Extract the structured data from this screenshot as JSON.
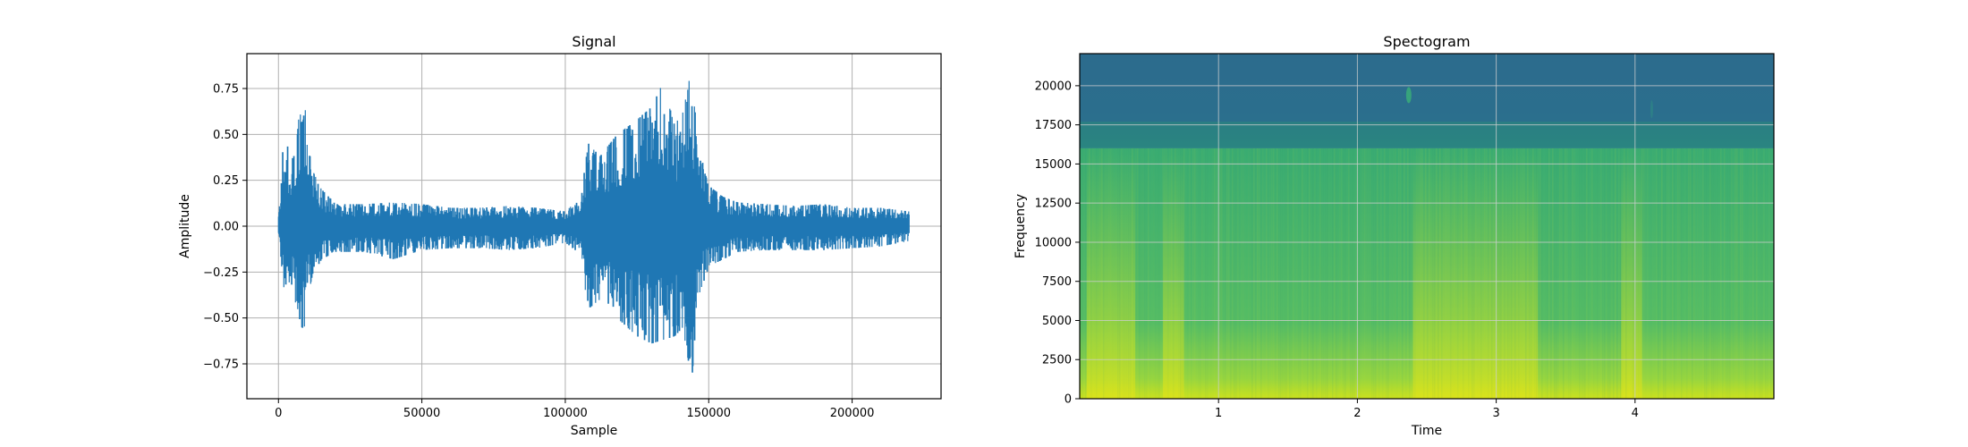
{
  "chart_data": [
    {
      "type": "line",
      "title": "Signal",
      "xlabel": "Sample",
      "ylabel": "Amplitude",
      "xlim": [
        -11000,
        231000
      ],
      "ylim": [
        -0.94,
        0.94
      ],
      "xticks": [
        0,
        50000,
        100000,
        150000,
        200000
      ],
      "xtick_labels": [
        "0",
        "50000",
        "100000",
        "150000",
        "200000"
      ],
      "yticks": [
        -0.75,
        -0.5,
        -0.25,
        0.0,
        0.25,
        0.5,
        0.75
      ],
      "ytick_labels": [
        "−0.75",
        "−0.50",
        "−0.25",
        "0.00",
        "0.25",
        "0.50",
        "0.75"
      ],
      "grid": true,
      "color": "#1f77b4",
      "series": [
        {
          "x": [
            0,
            2000,
            4000,
            6000,
            8000,
            9000,
            10000,
            12000,
            15000,
            20000,
            30000,
            40000,
            50000,
            60000,
            70000,
            80000,
            90000,
            100000,
            105000,
            108000,
            112000,
            118000,
            125000,
            130000,
            134000,
            138000,
            141000,
            144000,
            146000,
            150000,
            155000,
            160000,
            170000,
            180000,
            190000,
            200000,
            210000,
            220000
          ],
          "envelope_max": [
            0.08,
            0.54,
            0.35,
            0.4,
            0.77,
            0.77,
            0.45,
            0.3,
            0.2,
            0.12,
            0.12,
            0.13,
            0.12,
            0.1,
            0.1,
            0.11,
            0.1,
            0.08,
            0.15,
            0.45,
            0.38,
            0.5,
            0.58,
            0.65,
            0.78,
            0.55,
            0.62,
            0.86,
            0.45,
            0.22,
            0.16,
            0.13,
            0.12,
            0.11,
            0.12,
            0.1,
            0.1,
            0.08
          ],
          "envelope_min": [
            -0.08,
            -0.35,
            -0.3,
            -0.42,
            -0.55,
            -0.56,
            -0.4,
            -0.26,
            -0.18,
            -0.14,
            -0.14,
            -0.18,
            -0.13,
            -0.12,
            -0.12,
            -0.13,
            -0.12,
            -0.09,
            -0.15,
            -0.45,
            -0.4,
            -0.5,
            -0.6,
            -0.64,
            -0.62,
            -0.6,
            -0.55,
            -0.85,
            -0.4,
            -0.22,
            -0.18,
            -0.14,
            -0.13,
            -0.13,
            -0.13,
            -0.12,
            -0.11,
            -0.08
          ]
        }
      ]
    },
    {
      "type": "heatmap",
      "title": "Spectogram",
      "xlabel": "Time",
      "ylabel": "Frequency",
      "xlim": [
        0,
        5.0
      ],
      "ylim": [
        0,
        22050
      ],
      "xticks": [
        1,
        2,
        3,
        4
      ],
      "xtick_labels": [
        "1",
        "2",
        "3",
        "4"
      ],
      "yticks": [
        0,
        2500,
        5000,
        7500,
        10000,
        12500,
        15000,
        17500,
        20000
      ],
      "ytick_labels": [
        "0",
        "2500",
        "5000",
        "7500",
        "10000",
        "12500",
        "15000",
        "17500",
        "20000"
      ],
      "grid": true,
      "colormap": "viridis",
      "regions": {
        "upper_band_min_hz": 16000,
        "upper_band_color": "#2c6e8e",
        "cutoff_band_color": "#2a8a7a",
        "body_color": "#4cb870",
        "bright_color": "#a9d83a",
        "brightest_color": "#d7e21f"
      },
      "bright_time_spans": [
        [
          0.05,
          0.4
        ],
        [
          0.6,
          0.75
        ],
        [
          2.4,
          3.3
        ],
        [
          3.9,
          4.05
        ]
      ]
    }
  ]
}
